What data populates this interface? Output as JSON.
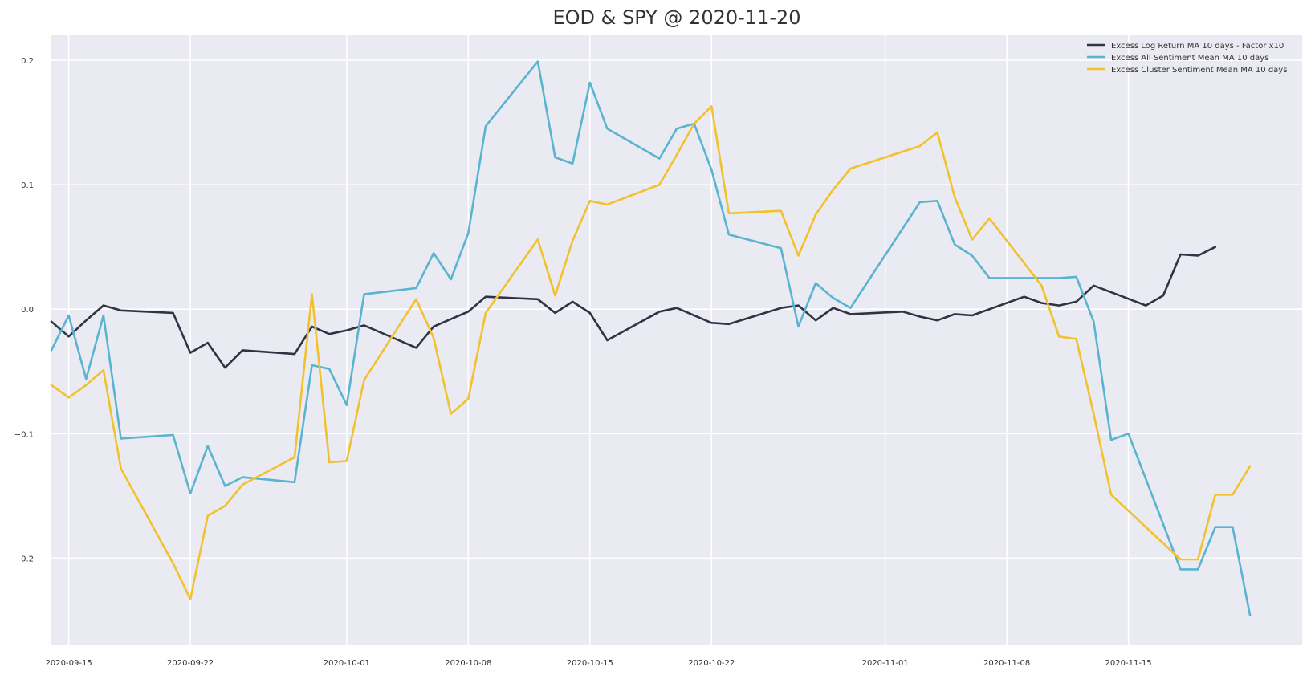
{
  "chart_data": {
    "type": "line",
    "title": "EOD & SPY @ 2020-11-20",
    "xlabel": "",
    "ylabel": "",
    "x_ticks": [
      "2020-09-15",
      "2020-09-22",
      "2020-10-01",
      "2020-10-08",
      "2020-10-15",
      "2020-10-22",
      "2020-11-01",
      "2020-11-08",
      "2020-11-15"
    ],
    "y_ticks": [
      "0.2",
      "0.1",
      "0.0",
      "−0.1",
      "−0.2"
    ],
    "xlim": [
      "2020-09-14",
      "2020-11-25"
    ],
    "ylim": [
      -0.27,
      0.22
    ],
    "grid": true,
    "legend_position": "top-right",
    "colors": {
      "background": "#eaeaf2",
      "grid": "#ffffff"
    },
    "series": [
      {
        "name": "Excess Log Return MA 10 days - Factor x10",
        "color": "#2e3444",
        "points": [
          [
            "2020-09-14",
            -0.01
          ],
          [
            "2020-09-15",
            -0.022
          ],
          [
            "2020-09-16",
            -0.009
          ],
          [
            "2020-09-17",
            0.003
          ],
          [
            "2020-09-18",
            -0.001
          ],
          [
            "2020-09-21",
            -0.003
          ],
          [
            "2020-09-22",
            -0.035
          ],
          [
            "2020-09-23",
            -0.027
          ],
          [
            "2020-09-24",
            -0.047
          ],
          [
            "2020-09-25",
            -0.033
          ],
          [
            "2020-09-28",
            -0.036
          ],
          [
            "2020-09-29",
            -0.014
          ],
          [
            "2020-09-30",
            -0.02
          ],
          [
            "2020-10-01",
            -0.017
          ],
          [
            "2020-10-02",
            -0.013
          ],
          [
            "2020-10-05",
            -0.031
          ],
          [
            "2020-10-06",
            -0.014
          ],
          [
            "2020-10-07",
            -0.008
          ],
          [
            "2020-10-08",
            -0.002
          ],
          [
            "2020-10-09",
            0.01
          ],
          [
            "2020-10-12",
            0.008
          ],
          [
            "2020-10-13",
            -0.003
          ],
          [
            "2020-10-14",
            0.006
          ],
          [
            "2020-10-15",
            -0.003
          ],
          [
            "2020-10-16",
            -0.025
          ],
          [
            "2020-10-19",
            -0.002
          ],
          [
            "2020-10-20",
            0.001
          ],
          [
            "2020-10-22",
            -0.011
          ],
          [
            "2020-10-23",
            -0.012
          ],
          [
            "2020-10-26",
            0.001
          ],
          [
            "2020-10-27",
            0.003
          ],
          [
            "2020-10-28",
            -0.009
          ],
          [
            "2020-10-29",
            0.001
          ],
          [
            "2020-10-30",
            -0.004
          ],
          [
            "2020-11-02",
            -0.002
          ],
          [
            "2020-11-03",
            -0.006
          ],
          [
            "2020-11-04",
            -0.009
          ],
          [
            "2020-11-05",
            -0.004
          ],
          [
            "2020-11-06",
            -0.005
          ],
          [
            "2020-11-09",
            0.01
          ],
          [
            "2020-11-10",
            0.005
          ],
          [
            "2020-11-11",
            0.003
          ],
          [
            "2020-11-12",
            0.006
          ],
          [
            "2020-11-13",
            0.019
          ],
          [
            "2020-11-16",
            0.003
          ],
          [
            "2020-11-17",
            0.011
          ],
          [
            "2020-11-18",
            0.044
          ],
          [
            "2020-11-19",
            0.043
          ],
          [
            "2020-11-20",
            0.05
          ]
        ]
      },
      {
        "name": "Excess All Sentiment Mean MA 10 days",
        "color": "#5ab4d0",
        "points": [
          [
            "2020-09-14",
            -0.033
          ],
          [
            "2020-09-15",
            -0.005
          ],
          [
            "2020-09-16",
            -0.056
          ],
          [
            "2020-09-17",
            -0.005
          ],
          [
            "2020-09-18",
            -0.104
          ],
          [
            "2020-09-21",
            -0.101
          ],
          [
            "2020-09-22",
            -0.148
          ],
          [
            "2020-09-23",
            -0.11
          ],
          [
            "2020-09-24",
            -0.142
          ],
          [
            "2020-09-25",
            -0.135
          ],
          [
            "2020-09-28",
            -0.139
          ],
          [
            "2020-09-29",
            -0.045
          ],
          [
            "2020-09-30",
            -0.048
          ],
          [
            "2020-10-01",
            -0.077
          ],
          [
            "2020-10-02",
            0.012
          ],
          [
            "2020-10-05",
            0.017
          ],
          [
            "2020-10-06",
            0.045
          ],
          [
            "2020-10-07",
            0.024
          ],
          [
            "2020-10-08",
            0.061
          ],
          [
            "2020-10-09",
            0.147
          ],
          [
            "2020-10-12",
            0.199
          ],
          [
            "2020-10-13",
            0.122
          ],
          [
            "2020-10-14",
            0.117
          ],
          [
            "2020-10-15",
            0.182
          ],
          [
            "2020-10-16",
            0.145
          ],
          [
            "2020-10-19",
            0.121
          ],
          [
            "2020-10-20",
            0.145
          ],
          [
            "2020-10-21",
            0.149
          ],
          [
            "2020-10-22",
            0.112
          ],
          [
            "2020-10-23",
            0.06
          ],
          [
            "2020-10-26",
            0.049
          ],
          [
            "2020-10-27",
            -0.014
          ],
          [
            "2020-10-28",
            0.021
          ],
          [
            "2020-10-29",
            0.009
          ],
          [
            "2020-10-30",
            0.001
          ],
          [
            "2020-11-03",
            0.086
          ],
          [
            "2020-11-04",
            0.087
          ],
          [
            "2020-11-05",
            0.052
          ],
          [
            "2020-11-06",
            0.043
          ],
          [
            "2020-11-07",
            0.025
          ],
          [
            "2020-11-11",
            0.025
          ],
          [
            "2020-11-12",
            0.026
          ],
          [
            "2020-11-13",
            -0.01
          ],
          [
            "2020-11-14",
            -0.105
          ],
          [
            "2020-11-15",
            -0.1
          ],
          [
            "2020-11-18",
            -0.209
          ],
          [
            "2020-11-19",
            -0.209
          ],
          [
            "2020-11-20",
            -0.175
          ],
          [
            "2020-11-21",
            -0.175
          ],
          [
            "2020-11-22",
            -0.246
          ]
        ]
      },
      {
        "name": "Excess Cluster Sentiment Mean MA 10 days",
        "color": "#f2c12e",
        "points": [
          [
            "2020-09-14",
            -0.061
          ],
          [
            "2020-09-15",
            -0.071
          ],
          [
            "2020-09-16",
            -0.061
          ],
          [
            "2020-09-17",
            -0.049
          ],
          [
            "2020-09-18",
            -0.128
          ],
          [
            "2020-09-21",
            -0.204
          ],
          [
            "2020-09-22",
            -0.233
          ],
          [
            "2020-09-23",
            -0.166
          ],
          [
            "2020-09-24",
            -0.158
          ],
          [
            "2020-09-25",
            -0.141
          ],
          [
            "2020-09-28",
            -0.119
          ],
          [
            "2020-09-29",
            0.012
          ],
          [
            "2020-09-30",
            -0.123
          ],
          [
            "2020-10-01",
            -0.122
          ],
          [
            "2020-10-02",
            -0.057
          ],
          [
            "2020-10-05",
            0.008
          ],
          [
            "2020-10-06",
            -0.023
          ],
          [
            "2020-10-07",
            -0.084
          ],
          [
            "2020-10-08",
            -0.072
          ],
          [
            "2020-10-09",
            -0.003
          ],
          [
            "2020-10-12",
            0.056
          ],
          [
            "2020-10-13",
            0.011
          ],
          [
            "2020-10-14",
            0.055
          ],
          [
            "2020-10-15",
            0.087
          ],
          [
            "2020-10-16",
            0.084
          ],
          [
            "2020-10-19",
            0.1
          ],
          [
            "2020-10-20",
            0.124
          ],
          [
            "2020-10-21",
            0.149
          ],
          [
            "2020-10-22",
            0.163
          ],
          [
            "2020-10-23",
            0.077
          ],
          [
            "2020-10-26",
            0.079
          ],
          [
            "2020-10-27",
            0.043
          ],
          [
            "2020-10-28",
            0.076
          ],
          [
            "2020-10-29",
            0.096
          ],
          [
            "2020-10-30",
            0.113
          ],
          [
            "2020-11-03",
            0.131
          ],
          [
            "2020-11-04",
            0.142
          ],
          [
            "2020-11-05",
            0.09
          ],
          [
            "2020-11-06",
            0.056
          ],
          [
            "2020-11-07",
            0.073
          ],
          [
            "2020-11-10",
            0.019
          ],
          [
            "2020-11-11",
            -0.022
          ],
          [
            "2020-11-12",
            -0.024
          ],
          [
            "2020-11-13",
            -0.084
          ],
          [
            "2020-11-14",
            -0.149
          ],
          [
            "2020-11-18",
            -0.201
          ],
          [
            "2020-11-19",
            -0.201
          ],
          [
            "2020-11-20",
            -0.149
          ],
          [
            "2020-11-21",
            -0.149
          ],
          [
            "2020-11-22",
            -0.126
          ]
        ]
      }
    ]
  }
}
